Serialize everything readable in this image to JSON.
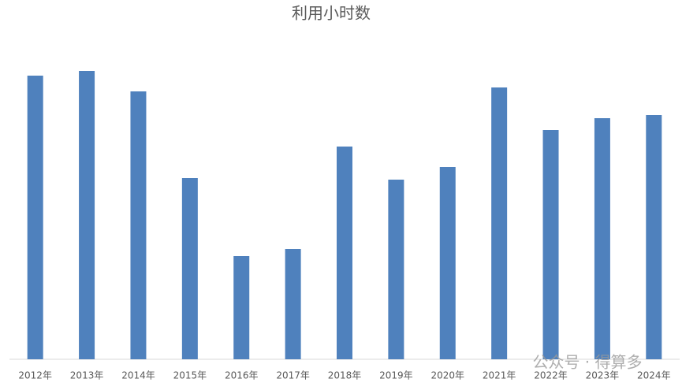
{
  "chart_data": {
    "type": "bar",
    "title": "利用小时数",
    "categories": [
      "2012年",
      "2013年",
      "2014年",
      "2015年",
      "2016年",
      "2017年",
      "2018年",
      "2019年",
      "2020年",
      "2021年",
      "2022年",
      "2023年",
      "2024年"
    ],
    "values": [
      360,
      366,
      340,
      230,
      131,
      140,
      270,
      228,
      244,
      345,
      291,
      306,
      310
    ],
    "color": "#4f81bd",
    "ylim": [
      0,
      400
    ]
  },
  "watermark": "公众号 · 得算多"
}
